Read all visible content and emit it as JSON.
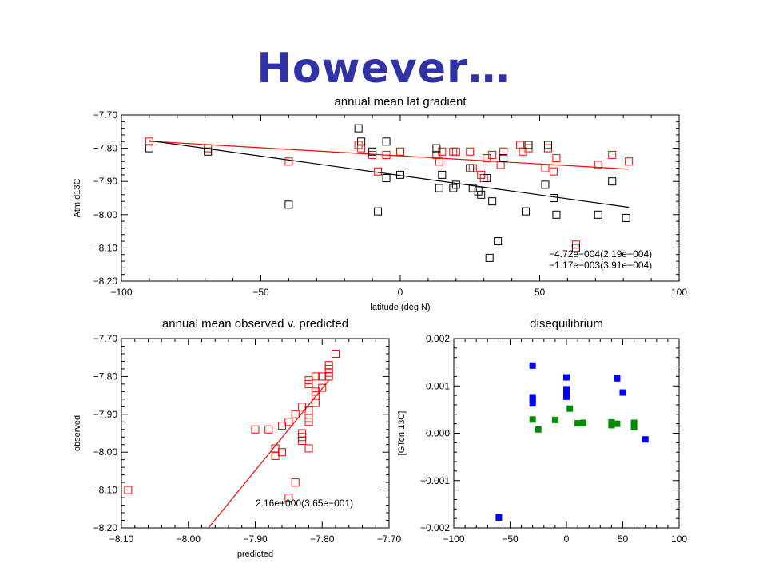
{
  "slide": {
    "title": "However…"
  },
  "colors": {
    "red": "#ff0000",
    "black": "#000000",
    "blue": "#0000ff",
    "green": "#008c00",
    "title": "#3131a8"
  },
  "chart_data": [
    {
      "type": "scatter",
      "title": "annual mean lat gradient",
      "xlabel": "latitude (deg N)",
      "ylabel": "Atm d13C",
      "xlim": [
        -100,
        100
      ],
      "ylim": [
        -8.2,
        -7.7
      ],
      "xticks": [
        -100,
        -50,
        0,
        50,
        100
      ],
      "yticks": [
        -7.7,
        -7.8,
        -7.9,
        -8.0,
        -8.1,
        -8.2
      ],
      "xtick_labels": [
        "−100",
        "−50",
        "0",
        "50",
        "100"
      ],
      "ytick_labels": [
        "−7.70",
        "−7.80",
        "−7.90",
        "−8.00",
        "−8.10",
        "−8.20"
      ],
      "series": [
        {
          "color": "#ff0000",
          "marker": "open-square",
          "x": [
            -90,
            -69,
            -40,
            -15,
            -14,
            -10,
            -8,
            -5,
            0,
            13,
            14,
            15,
            19,
            20,
            25,
            26,
            29,
            30,
            31,
            33,
            36,
            37,
            43,
            44,
            46,
            52,
            53,
            55,
            56,
            63,
            71,
            76,
            82
          ],
          "y": [
            -7.78,
            -7.8,
            -7.84,
            -7.79,
            -7.8,
            -7.82,
            -7.87,
            -7.82,
            -7.81,
            -7.82,
            -7.84,
            -7.81,
            -7.81,
            -7.81,
            -7.81,
            -7.86,
            -7.88,
            -7.89,
            -7.83,
            -7.82,
            -7.85,
            -7.81,
            -7.79,
            -7.81,
            -7.8,
            -7.86,
            -7.8,
            -7.87,
            -7.83,
            -8.09,
            -7.85,
            -7.82,
            -7.84
          ]
        },
        {
          "color": "#000000",
          "marker": "open-square",
          "x": [
            -90,
            -69,
            -40,
            -15,
            -14,
            -10,
            -8,
            -5,
            -5,
            0,
            13,
            14,
            15,
            19,
            20,
            25,
            26,
            28,
            29,
            31,
            32,
            33,
            35,
            37,
            45,
            46,
            52,
            53,
            55,
            56,
            63,
            71,
            76,
            81
          ],
          "y": [
            -7.8,
            -7.81,
            -7.97,
            -7.74,
            -7.78,
            -7.81,
            -7.99,
            -7.78,
            -7.89,
            -7.88,
            -7.8,
            -7.92,
            -7.88,
            -7.92,
            -7.91,
            -7.86,
            -7.92,
            -7.93,
            -7.94,
            -7.89,
            -8.13,
            -7.96,
            -8.08,
            -7.83,
            -7.99,
            -7.79,
            -7.91,
            -7.79,
            -7.95,
            -8.0,
            -8.1,
            -8.0,
            -7.9,
            -8.01
          ]
        }
      ],
      "fit_lines": [
        {
          "color": "#ff0000",
          "x": [
            -90,
            82
          ],
          "y": [
            -7.779,
            -7.863
          ]
        },
        {
          "color": "#000000",
          "x": [
            -90,
            82
          ],
          "y": [
            -7.777,
            -7.978
          ]
        }
      ],
      "annotations": [
        {
          "text": "−4.72e−004(2.19e−004)",
          "color": "#ff0000"
        },
        {
          "text": "−1.17e−003(3.91e−004)",
          "color": "#000000"
        }
      ]
    },
    {
      "type": "scatter",
      "title": "annual mean observed v. predicted",
      "xlabel": "predicted",
      "ylabel": "observed",
      "xlim": [
        -8.1,
        -7.7
      ],
      "ylim": [
        -8.2,
        -7.7
      ],
      "xticks": [
        -8.1,
        -8.0,
        -7.9,
        -7.8,
        -7.7
      ],
      "yticks": [
        -7.7,
        -7.8,
        -7.9,
        -8.0,
        -8.1,
        -8.2
      ],
      "xtick_labels": [
        "−8.10",
        "−8.00",
        "−7.90",
        "−7.80",
        "−7.70"
      ],
      "ytick_labels": [
        "−7.70",
        "−7.80",
        "−7.90",
        "−8.00",
        "−8.10",
        "−8.20"
      ],
      "series": [
        {
          "color": "#ff0000",
          "marker": "open-square",
          "x": [
            -8.09,
            -7.78,
            -7.79,
            -7.79,
            -7.79,
            -7.79,
            -7.8,
            -7.8,
            -7.81,
            -7.81,
            -7.81,
            -7.82,
            -7.82,
            -7.82,
            -7.82,
            -7.82,
            -7.83,
            -7.83,
            -7.83,
            -7.83,
            -7.84,
            -7.84,
            -7.85,
            -7.86,
            -7.86,
            -7.87,
            -7.87,
            -7.88,
            -7.9,
            -7.82,
            -7.81,
            -7.85
          ],
          "y": [
            -8.1,
            -7.74,
            -7.77,
            -7.78,
            -7.79,
            -7.8,
            -7.8,
            -7.83,
            -7.8,
            -7.85,
            -7.87,
            -7.81,
            -7.89,
            -7.91,
            -7.92,
            -7.99,
            -7.88,
            -7.95,
            -7.96,
            -7.97,
            -7.9,
            -8.08,
            -7.92,
            -7.93,
            -8.0,
            -7.99,
            -8.01,
            -7.94,
            -7.94,
            -7.82,
            -7.84,
            -8.12
          ]
        }
      ],
      "fit_lines": [
        {
          "color": "#ff0000",
          "x": [
            -7.97,
            -7.79
          ],
          "y": [
            -8.2,
            -7.81
          ]
        }
      ],
      "annotations": [
        {
          "text": "2.16e+000(3.65e−001)",
          "color": "#ff0000"
        }
      ]
    },
    {
      "type": "scatter",
      "title": "disequilibrium",
      "xlabel": "",
      "ylabel": "[GTon 13C]",
      "xlim": [
        -100,
        100
      ],
      "ylim": [
        -0.002,
        0.002
      ],
      "xticks": [
        -100,
        -50,
        0,
        50,
        100
      ],
      "yticks": [
        0.002,
        0.001,
        0.0,
        -0.001,
        -0.002
      ],
      "xtick_labels": [
        "−100",
        "−50",
        "0",
        "50",
        "100"
      ],
      "ytick_labels": [
        "0.002",
        "0.001",
        "0.000",
        "−0.001",
        "−0.002"
      ],
      "series": [
        {
          "color": "#0000ff",
          "marker": "filled-square",
          "x": [
            -60,
            -30,
            -30,
            -30,
            -30,
            0,
            0,
            0,
            0,
            45,
            50,
            70
          ],
          "y": [
            -0.00178,
            0.00143,
            0.00076,
            0.0007,
            0.00063,
            0.00118,
            0.00093,
            0.00083,
            0.00077,
            0.00116,
            0.00086,
            -0.00013
          ]
        },
        {
          "color": "#008c00",
          "marker": "filled-square",
          "x": [
            -30,
            -25,
            -10,
            3,
            10,
            15,
            40,
            40,
            45,
            60,
            60
          ],
          "y": [
            0.00029,
            8e-05,
            0.00028,
            0.00052,
            0.00021,
            0.00022,
            0.00023,
            0.00017,
            0.0002,
            0.00022,
            0.00013
          ]
        }
      ]
    }
  ]
}
